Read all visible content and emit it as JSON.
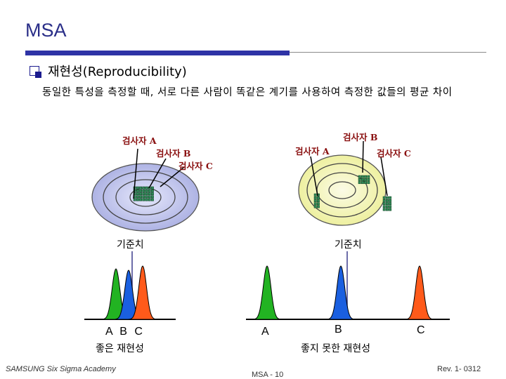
{
  "header": {
    "title": "MSA"
  },
  "section": {
    "heading": "재현성(Reproducibility)",
    "description": "동일한 특성을 측정할 때, 서로 다른 사람이 똑같은 계기를 사용하여 측정한 값들의 평균 차이"
  },
  "left_figure": {
    "inspector_a": "검사자 A",
    "inspector_b": "검사자 B",
    "inspector_c": "검사자 C",
    "reference_label": "기준치",
    "curve_labels": "A B C",
    "caption": "좋은 재현성",
    "target_color": "#b8bde8",
    "colors": {
      "A": "#22b322",
      "B": "#1a5fe0",
      "C": "#ff5a1a"
    }
  },
  "right_figure": {
    "inspector_a": "검사자 A",
    "inspector_b": "검사자 B",
    "inspector_c": "검사자 C",
    "reference_label": "기준치",
    "label_a": "A",
    "label_b": "B",
    "label_c": "C",
    "caption": "좋지 못한 재현성",
    "target_color": "#f4f5b4"
  },
  "footer": {
    "left": "SAMSUNG Six Sigma Academy",
    "center": "MSA - 10",
    "right": "Rev. 1- 0312"
  }
}
